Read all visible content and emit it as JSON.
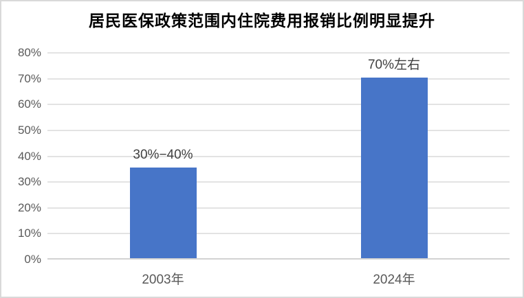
{
  "chart_data": {
    "type": "bar",
    "title": "居民医保政策范围内住院费用报销比例明显提升",
    "categories": [
      "2003年",
      "2024年"
    ],
    "values": [
      35,
      70
    ],
    "data_labels": [
      "30%−40%",
      "70%左右"
    ],
    "xlabel": "",
    "ylabel": "",
    "ylim": [
      0,
      80
    ],
    "ytick_step": 10,
    "ytick_labels": [
      "0%",
      "10%",
      "20%",
      "30%",
      "40%",
      "50%",
      "60%",
      "70%",
      "80%"
    ],
    "grid": true,
    "legend": false,
    "bar_color": "#4775C8",
    "gridline_color": "#e3e3e3",
    "axis_line_color": "#d2d2d2",
    "frame_border_color": "#d9d9d9",
    "title_color": "#000000",
    "data_label_color": "#404040",
    "tick_label_color": "#595959"
  }
}
